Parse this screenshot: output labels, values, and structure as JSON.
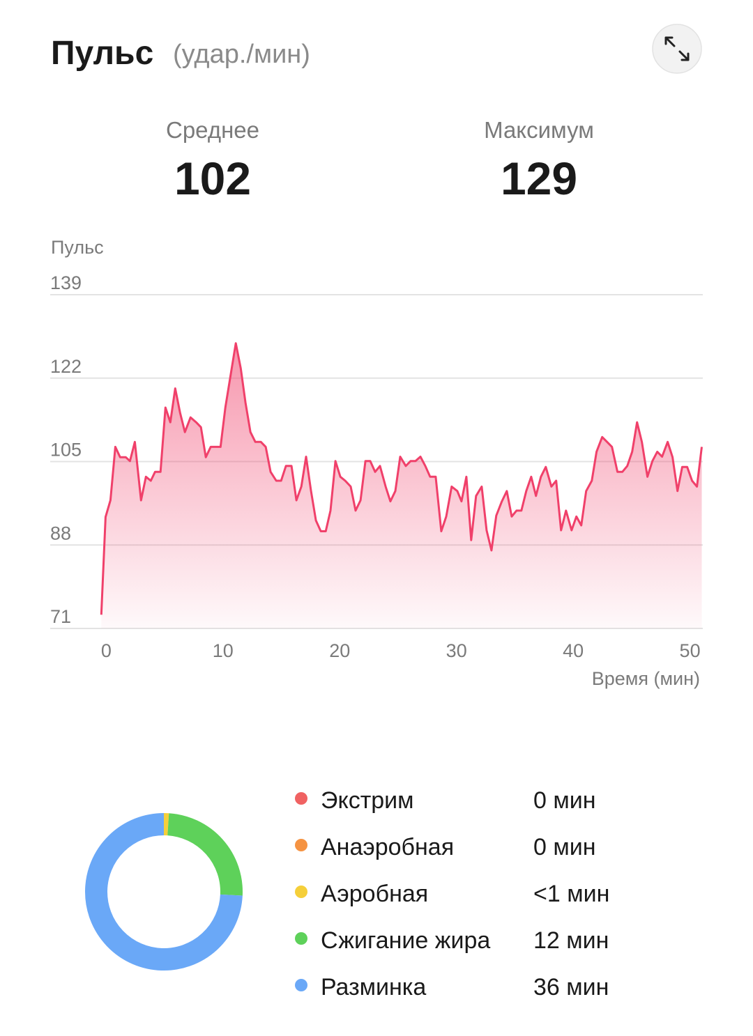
{
  "header": {
    "title": "Пульс",
    "unit": "(удар./мин)"
  },
  "stats": [
    {
      "label": "Среднее",
      "value": "102"
    },
    {
      "label": "Максимум",
      "value": "129"
    }
  ],
  "chart_data": [
    {
      "type": "area",
      "y_label": "Пульс",
      "x_label": "Время (мин)",
      "color": "#f0406a",
      "grid": true,
      "xlim": [
        -4.8,
        51.1
      ],
      "ylim": [
        71,
        139
      ],
      "xticks": [
        0,
        10,
        20,
        30,
        40,
        50
      ],
      "yticks": [
        71,
        88,
        105,
        122,
        139
      ],
      "x": [
        -0.42,
        -0.06,
        0.36,
        0.78,
        1.19,
        1.67,
        2.03,
        2.45,
        2.98,
        3.4,
        3.82,
        4.18,
        4.65,
        5.07,
        5.49,
        5.91,
        6.32,
        6.74,
        7.22,
        7.7,
        8.11,
        8.53,
        8.95,
        9.43,
        9.79,
        10.2,
        11.1,
        11.52,
        11.93,
        12.35,
        12.77,
        13.25,
        13.66,
        14.08,
        14.56,
        14.98,
        15.39,
        15.87,
        16.29,
        16.71,
        17.12,
        17.54,
        17.96,
        18.38,
        18.8,
        19.21,
        19.63,
        20.05,
        20.47,
        20.94,
        21.36,
        21.78,
        22.2,
        22.61,
        23.03,
        23.45,
        23.93,
        24.34,
        24.76,
        25.18,
        25.66,
        26.07,
        26.49,
        26.91,
        27.33,
        27.74,
        28.22,
        28.7,
        29.12,
        29.59,
        30.07,
        30.43,
        30.85,
        31.26,
        31.68,
        32.16,
        32.58,
        33.0,
        33.41,
        33.89,
        34.31,
        34.73,
        35.14,
        35.56,
        35.98,
        36.4,
        36.81,
        37.23,
        37.65,
        38.13,
        38.54,
        38.96,
        39.38,
        39.86,
        40.27,
        40.69,
        41.11,
        41.59,
        42.0,
        42.48,
        42.9,
        43.32,
        43.79,
        44.21,
        44.63,
        45.05,
        45.47,
        45.88,
        46.36,
        46.78,
        47.2,
        47.61,
        48.09,
        48.51,
        48.93,
        49.34,
        49.76,
        50.18,
        50.6,
        51.01
      ],
      "values": [
        73.8,
        93.7,
        97.1,
        108,
        105.9,
        105.9,
        105.1,
        109,
        97.1,
        101.9,
        101.1,
        102.9,
        102.9,
        116,
        113,
        119.9,
        115,
        111,
        114,
        113,
        112,
        105.9,
        108,
        108,
        108,
        116,
        129.1,
        124,
        117,
        111,
        109,
        109,
        108,
        102.9,
        101.1,
        101.1,
        104.1,
        104.1,
        97.1,
        99.9,
        106,
        99,
        93,
        90.8,
        90.8,
        95,
        105.1,
        101.9,
        101.1,
        99.9,
        95,
        97.1,
        105.1,
        105.1,
        102.9,
        104.1,
        99.9,
        96.9,
        99,
        106,
        104.1,
        105.1,
        105.1,
        106,
        104.1,
        101.9,
        101.9,
        90.8,
        93.8,
        99.9,
        99,
        96.9,
        101.9,
        89,
        98,
        99.9,
        91,
        86.9,
        94,
        96.9,
        99,
        93.8,
        95,
        95,
        99,
        101.9,
        98,
        101.9,
        103.9,
        99.9,
        101.1,
        91,
        95,
        91,
        93.8,
        92,
        99,
        101.1,
        107,
        110,
        109,
        108,
        102.9,
        102.9,
        104.1,
        107,
        113,
        109,
        101.9,
        105.1,
        107,
        106,
        109,
        105.9,
        99,
        103.9,
        103.9,
        101.1,
        99.9,
        108
      ]
    },
    {
      "type": "donut",
      "categories": [
        "Экстрим",
        "Анаэробная",
        "Аэробная",
        "Сжигание жира",
        "Разминка"
      ],
      "values": [
        0,
        0,
        0.5,
        12,
        36
      ],
      "value_labels": [
        "0 мин",
        "0 мин",
        "<1 мин",
        "12 мин",
        "36 мин"
      ],
      "colors": [
        "#f06262",
        "#f59342",
        "#f5cf3a",
        "#5ed15a",
        "#6aa8f7"
      ]
    }
  ]
}
